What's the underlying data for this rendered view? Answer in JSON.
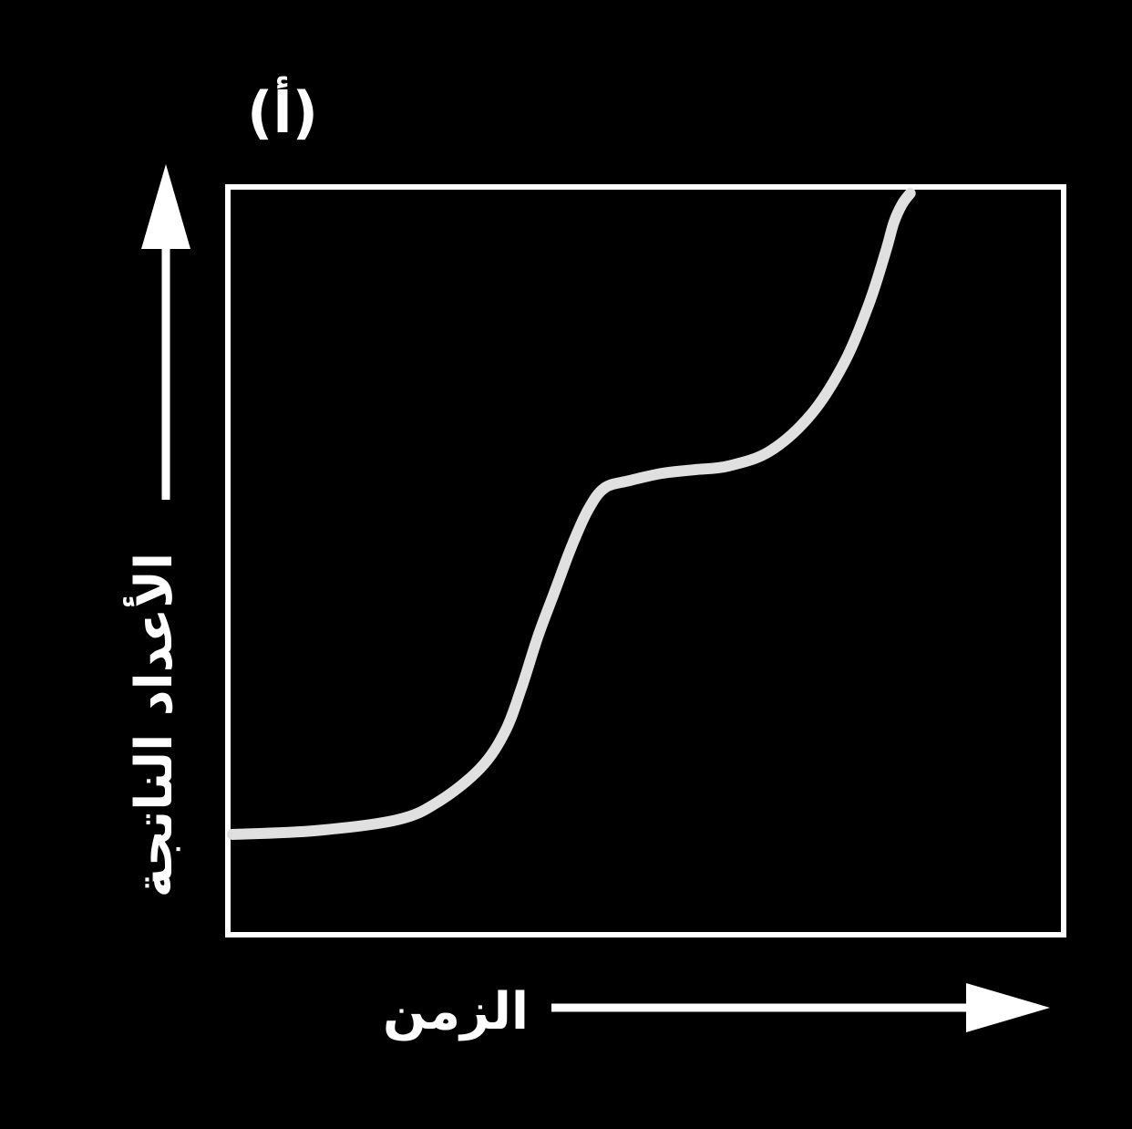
{
  "chart_data": {
    "type": "line",
    "panel_label": "(أ)",
    "title": "",
    "xlabel": "الزمن",
    "ylabel": "الأعداد الناتجة",
    "xlim": [
      0,
      1
    ],
    "ylim": [
      0,
      1
    ],
    "grid": false,
    "legend": "none",
    "ticks": false,
    "series": [
      {
        "x": [
          0.0,
          0.1,
          0.2,
          0.25,
          0.3,
          0.33,
          0.35,
          0.37,
          0.39,
          0.41,
          0.43,
          0.45,
          0.48,
          0.52,
          0.56,
          0.6,
          0.65,
          0.7,
          0.74,
          0.77,
          0.79,
          0.8,
          0.81,
          0.82
        ],
        "values": [
          0.13,
          0.135,
          0.15,
          0.175,
          0.22,
          0.27,
          0.33,
          0.4,
          0.46,
          0.52,
          0.57,
          0.6,
          0.61,
          0.62,
          0.625,
          0.63,
          0.65,
          0.7,
          0.77,
          0.85,
          0.92,
          0.96,
          0.985,
          1.0
        ]
      }
    ],
    "colors": {
      "background": "#000000",
      "frame": "#ffffff",
      "line": "#e0e0e0",
      "arrows": "#ffffff"
    }
  }
}
